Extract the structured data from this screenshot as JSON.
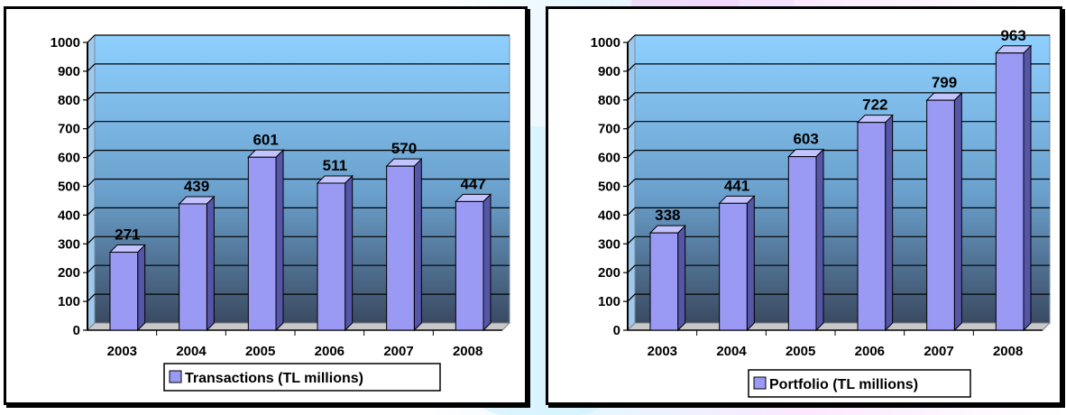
{
  "chart_data": [
    {
      "type": "bar",
      "categories": [
        "2003",
        "2004",
        "2005",
        "2006",
        "2007",
        "2008"
      ],
      "series": [
        {
          "name": "Transactions (TL millions)",
          "values": [
            271,
            439,
            601,
            511,
            570,
            447
          ]
        }
      ],
      "data_labels": [
        "271",
        "439",
        "601",
        "511",
        "570",
        "447"
      ],
      "y_ticks": [
        "0",
        "100",
        "200",
        "300",
        "400",
        "500",
        "600",
        "700",
        "800",
        "900",
        "1000"
      ],
      "ylim": [
        0,
        1000
      ],
      "grid": true,
      "legend": "bottom",
      "colors": {
        "bar": "#9a9af5",
        "bar_side": "#5656a8",
        "bar_top": "#c3c3ff",
        "plot_top": "#8fd0ff",
        "plot_bottom": "#3a4a62"
      }
    },
    {
      "type": "bar",
      "categories": [
        "2003",
        "2004",
        "2005",
        "2006",
        "2007",
        "2008"
      ],
      "series": [
        {
          "name": "Portfolio (TL millions)",
          "values": [
            338,
            441,
            603,
            722,
            799,
            963
          ]
        }
      ],
      "data_labels": [
        "338",
        "441",
        "603",
        "722",
        "799",
        "963"
      ],
      "y_ticks": [
        "0",
        "100",
        "200",
        "300",
        "400",
        "500",
        "600",
        "700",
        "800",
        "900",
        "1000"
      ],
      "ylim": [
        0,
        1000
      ],
      "grid": true,
      "legend": "bottom",
      "colors": {
        "bar": "#9a9af5",
        "bar_side": "#5656a8",
        "bar_top": "#c3c3ff",
        "plot_top": "#8fd0ff",
        "plot_bottom": "#3a4a62"
      }
    }
  ]
}
